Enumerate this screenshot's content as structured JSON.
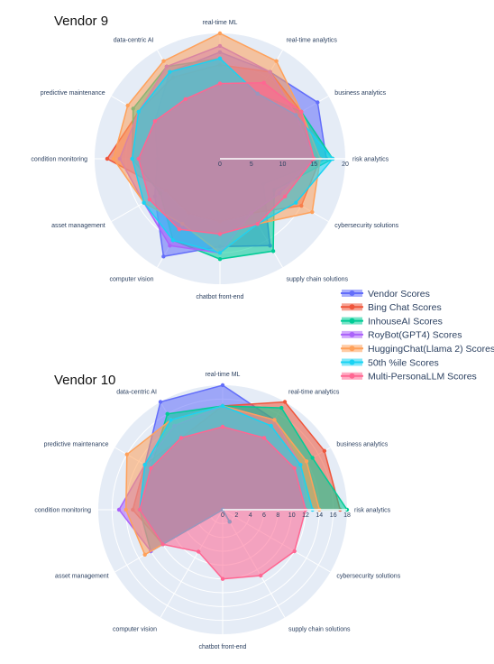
{
  "chart_data": [
    {
      "type": "radar",
      "title": "Vendor 9",
      "categories": [
        "risk analytics",
        "business analytics",
        "real-time analytics",
        "real-time ML",
        "data-centric AI",
        "predictive maintenance",
        "condition monitoring",
        "asset management",
        "computer vision",
        "chatbot front-end",
        "supply chain solutions",
        "cybersecurity solutions"
      ],
      "radial_range": [
        0,
        20
      ],
      "radial_ticks": [
        "0",
        "5",
        "10",
        "15",
        "20"
      ],
      "series": [
        {
          "name": "Vendor Scores",
          "color": "#636efa",
          "values": [
            17,
            18,
            16,
            17,
            16,
            12,
            10,
            12,
            18,
            14,
            16,
            8
          ]
        },
        {
          "name": "Bing Chat Scores",
          "color": "#ef553b",
          "values": [
            16,
            15,
            16,
            15,
            15,
            15,
            18,
            10,
            10,
            10,
            10,
            15
          ]
        },
        {
          "name": "InhouseAI Scores",
          "color": "#00cc96",
          "values": [
            18,
            15,
            12,
            16,
            17,
            16,
            14,
            11,
            15,
            16,
            17,
            10
          ]
        },
        {
          "name": "RoyBot(GPT4) Scores",
          "color": "#ab63fa",
          "values": [
            15,
            14,
            16,
            18,
            17,
            15,
            16,
            14,
            16,
            15,
            10,
            11
          ]
        },
        {
          "name": "HuggingChat(Llama 2) Scores",
          "color": "#ffa15a",
          "values": [
            16,
            15,
            18,
            20,
            18,
            17,
            17,
            14,
            12,
            15,
            12,
            17
          ]
        },
        {
          "name": "50th %ile Scores",
          "color": "#19d3f3",
          "values": [
            18,
            14,
            12,
            16,
            16,
            15,
            14,
            14,
            15,
            15,
            12,
            14
          ]
        },
        {
          "name": "Multi-PersonaLLM Scores",
          "color": "#ff6692",
          "values": [
            15,
            15,
            14,
            12,
            11,
            12,
            13,
            13,
            13,
            12,
            12,
            12
          ]
        }
      ]
    },
    {
      "type": "radar",
      "title": "Vendor 10",
      "categories": [
        "risk analytics",
        "business analytics",
        "real-time analytics",
        "real-time ML",
        "data-centric AI",
        "predictive maintenance",
        "condition monitoring",
        "asset management",
        "computer vision",
        "chatbot front-end",
        "supply chain solutions",
        "cybersecurity solutions"
      ],
      "radial_range": [
        0,
        18
      ],
      "radial_ticks": [
        "0",
        "2",
        "4",
        "6",
        "8",
        "10",
        "12",
        "14",
        "16",
        "18"
      ],
      "series": [
        {
          "name": "Vendor Scores",
          "color": "#636efa",
          "values": [
            12,
            13,
            15,
            18,
            18,
            13,
            12,
            10,
            0,
            0,
            2,
            0
          ]
        },
        {
          "name": "Bing Chat Scores",
          "color": "#ef553b",
          "values": [
            17,
            17,
            18,
            15,
            12,
            13,
            13,
            10,
            0,
            0,
            2,
            0
          ]
        },
        {
          "name": "InhouseAI Scores",
          "color": "#00cc96",
          "values": [
            18,
            15,
            17,
            15,
            16,
            12,
            12,
            12,
            0,
            0,
            2,
            0
          ]
        },
        {
          "name": "RoyBot(GPT4) Scores",
          "color": "#ab63fa",
          "values": [
            12,
            13,
            15,
            15,
            14,
            13,
            15,
            12,
            0,
            0,
            2,
            0
          ]
        },
        {
          "name": "HuggingChat(Llama 2) Scores",
          "color": "#ffa15a",
          "values": [
            14,
            14,
            15,
            15,
            15,
            16,
            14,
            13,
            0,
            0,
            2,
            0
          ]
        },
        {
          "name": "50th %ile Scores",
          "color": "#19d3f3",
          "values": [
            13,
            13,
            14,
            15,
            15,
            13,
            12,
            10,
            0,
            0,
            2,
            0
          ]
        },
        {
          "name": "Multi-PersonaLLM Scores",
          "color": "#ff6692",
          "values": [
            12,
            12,
            12,
            12,
            12,
            12,
            12,
            10,
            7,
            10,
            11,
            12
          ]
        }
      ]
    }
  ]
}
